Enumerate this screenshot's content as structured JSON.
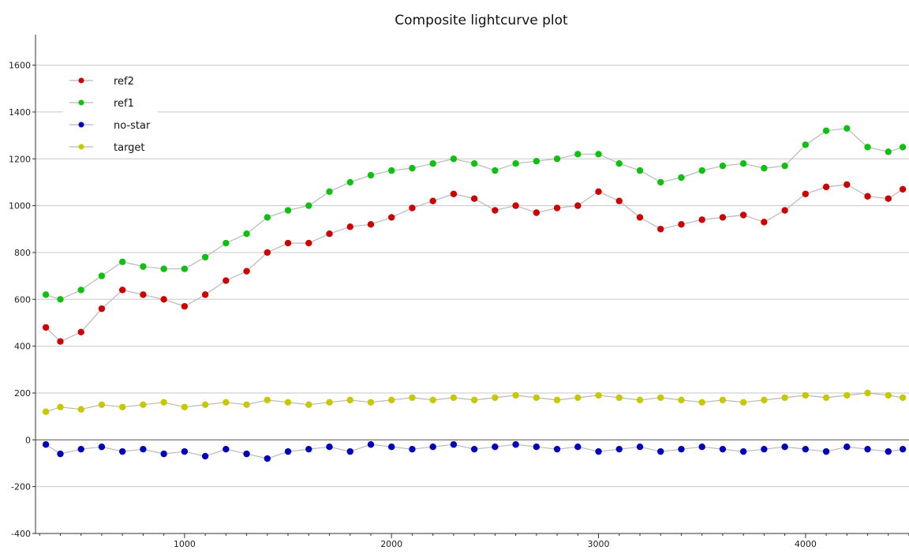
{
  "chart_data": {
    "type": "scatter",
    "title": "Composite lightcurve plot",
    "xlabel": "",
    "ylabel": "",
    "xlim": [
      280,
      4500
    ],
    "ylim": [
      -400,
      1730
    ],
    "x_ticks": [
      1000,
      2000,
      3000,
      4000
    ],
    "y_ticks": [
      -400,
      -200,
      0,
      200,
      400,
      600,
      800,
      1000,
      1200,
      1400,
      1600
    ],
    "grid": "horizontal",
    "connecting_lines": true,
    "legend_position": "top-left",
    "series": [
      {
        "name": "ref2",
        "color": "#cc0000",
        "x": [
          330,
          400,
          500,
          600,
          700,
          800,
          900,
          1000,
          1100,
          1200,
          1300,
          1400,
          1500,
          1600,
          1700,
          1800,
          1900,
          2000,
          2100,
          2200,
          2300,
          2400,
          2500,
          2600,
          2700,
          2800,
          2900,
          3000,
          3100,
          3200,
          3300,
          3400,
          3500,
          3600,
          3700,
          3800,
          3900,
          4000,
          4100,
          4200,
          4300,
          4400,
          4470
        ],
        "y": [
          480,
          420,
          460,
          560,
          640,
          620,
          600,
          570,
          620,
          680,
          720,
          800,
          840,
          840,
          880,
          910,
          920,
          950,
          990,
          1020,
          1050,
          1030,
          980,
          1000,
          970,
          990,
          1000,
          1060,
          1020,
          950,
          900,
          920,
          940,
          950,
          960,
          930,
          980,
          1050,
          1080,
          1090,
          1040,
          1030,
          1070
        ]
      },
      {
        "name": "ref1",
        "color": "#10c010",
        "x": [
          330,
          400,
          500,
          600,
          700,
          800,
          900,
          1000,
          1100,
          1200,
          1300,
          1400,
          1500,
          1600,
          1700,
          1800,
          1900,
          2000,
          2100,
          2200,
          2300,
          2400,
          2500,
          2600,
          2700,
          2800,
          2900,
          3000,
          3100,
          3200,
          3300,
          3400,
          3500,
          3600,
          3700,
          3800,
          3900,
          4000,
          4100,
          4200,
          4300,
          4400,
          4470
        ],
        "y": [
          620,
          600,
          640,
          700,
          760,
          740,
          730,
          730,
          780,
          840,
          880,
          950,
          980,
          1000,
          1060,
          1100,
          1130,
          1150,
          1160,
          1180,
          1200,
          1180,
          1150,
          1180,
          1190,
          1200,
          1220,
          1220,
          1180,
          1150,
          1100,
          1120,
          1150,
          1170,
          1180,
          1160,
          1170,
          1260,
          1320,
          1330,
          1250,
          1230,
          1250
        ]
      },
      {
        "name": "no-star",
        "color": "#0000b8",
        "x": [
          330,
          400,
          500,
          600,
          700,
          800,
          900,
          1000,
          1100,
          1200,
          1300,
          1400,
          1500,
          1600,
          1700,
          1800,
          1900,
          2000,
          2100,
          2200,
          2300,
          2400,
          2500,
          2600,
          2700,
          2800,
          2900,
          3000,
          3100,
          3200,
          3300,
          3400,
          3500,
          3600,
          3700,
          3800,
          3900,
          4000,
          4100,
          4200,
          4300,
          4400,
          4470
        ],
        "y": [
          -20,
          -60,
          -40,
          -30,
          -50,
          -40,
          -60,
          -50,
          -70,
          -40,
          -60,
          -80,
          -50,
          -40,
          -30,
          -50,
          -20,
          -30,
          -40,
          -30,
          -20,
          -40,
          -30,
          -20,
          -30,
          -40,
          -30,
          -50,
          -40,
          -30,
          -50,
          -40,
          -30,
          -40,
          -50,
          -40,
          -30,
          -40,
          -50,
          -30,
          -40,
          -50,
          -40
        ]
      },
      {
        "name": "target",
        "color": "#c8c800",
        "x": [
          330,
          400,
          500,
          600,
          700,
          800,
          900,
          1000,
          1100,
          1200,
          1300,
          1400,
          1500,
          1600,
          1700,
          1800,
          1900,
          2000,
          2100,
          2200,
          2300,
          2400,
          2500,
          2600,
          2700,
          2800,
          2900,
          3000,
          3100,
          3200,
          3300,
          3400,
          3500,
          3600,
          3700,
          3800,
          3900,
          4000,
          4100,
          4200,
          4300,
          4400,
          4470
        ],
        "y": [
          120,
          140,
          130,
          150,
          140,
          150,
          160,
          140,
          150,
          160,
          150,
          170,
          160,
          150,
          160,
          170,
          160,
          170,
          180,
          170,
          180,
          170,
          180,
          190,
          180,
          170,
          180,
          190,
          180,
          170,
          180,
          170,
          160,
          170,
          160,
          170,
          180,
          190,
          180,
          190,
          200,
          190,
          180
        ]
      }
    ]
  }
}
